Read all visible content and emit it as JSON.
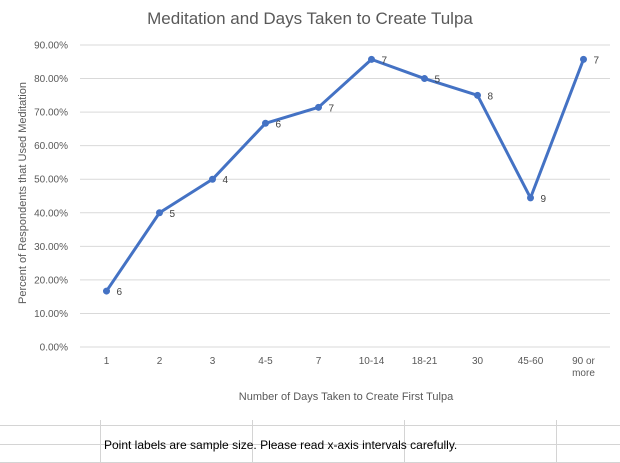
{
  "chart_data": {
    "type": "line",
    "title": "Meditation and Days Taken to Create Tulpa",
    "xlabel": "Number of Days Taken to Create First Tulpa",
    "ylabel": "Percent of Respondents that Used Meditation",
    "categories": [
      "1",
      "2",
      "3",
      "4-5",
      "7",
      "10-14",
      "18-21",
      "30",
      "45-60",
      "90 or more"
    ],
    "category_lines": [
      [
        "1"
      ],
      [
        "2"
      ],
      [
        "3"
      ],
      [
        "4-5"
      ],
      [
        "7"
      ],
      [
        "10-14"
      ],
      [
        "18-21"
      ],
      [
        "30"
      ],
      [
        "45-60"
      ],
      [
        "90 or",
        "more"
      ]
    ],
    "series": [
      {
        "values": [
          16.67,
          40.0,
          50.0,
          66.67,
          71.43,
          85.71,
          80.0,
          75.0,
          44.44,
          85.71
        ],
        "point_labels": [
          "6",
          "5",
          "4",
          "6",
          "7",
          "7",
          "5",
          "8",
          "9",
          "7"
        ],
        "color": "#4472C4"
      }
    ],
    "ylim": [
      0,
      90
    ],
    "yticks": [
      0,
      10,
      20,
      30,
      40,
      50,
      60,
      70,
      80,
      90
    ],
    "ytick_labels": [
      "0.00%",
      "10.00%",
      "20.00%",
      "30.00%",
      "40.00%",
      "50.00%",
      "60.00%",
      "70.00%",
      "80.00%",
      "90.00%"
    ],
    "grid": true,
    "legend": "none"
  },
  "sheet": {
    "note": "Point labels are sample size. Please read x-axis intervals carefully."
  }
}
